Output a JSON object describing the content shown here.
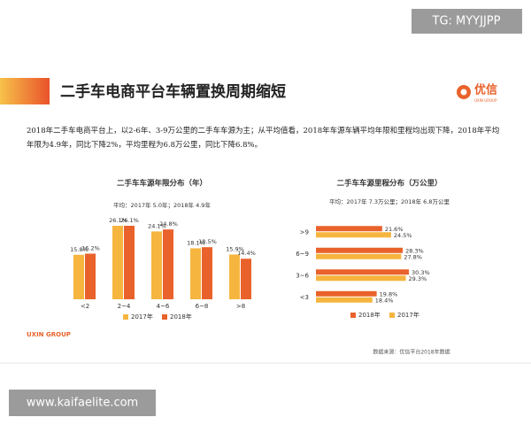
{
  "header": {
    "title": "二手车电商平台车辆置换周期缩短",
    "logo": "优信",
    "logo_sub": "UXIN GROUP"
  },
  "paragraph": "2018年二手车电商平台上，以2-6年、3-9万公里的二手车车源为主；从平均值看，2018年车源车辆平均年限和里程均出现下降，2018年平均年限为4.9年，同比下降2%，平均里程为6.8万公里，同比下降6.8%。",
  "footer": {
    "brand": "UXIN GROUP",
    "source": "数据来源：优信平台2018年数据"
  },
  "watermarks": {
    "top": "TG: MYYJJPP",
    "bottom": "www.kaifaelite.com"
  },
  "chart_data": [
    {
      "type": "bar",
      "title": "二手车车源年限分布（年）",
      "subtitle": "平均：2017年 5.0年；2018年 4.9年",
      "categories": [
        "<2",
        "2~4",
        "4~6",
        "6~8",
        ">8"
      ],
      "series": [
        {
          "name": "2017年",
          "color": "#f6b53f",
          "values": [
            15.8,
            26.1,
            24.1,
            18.1,
            15.9
          ],
          "value_labels": [
            "15.8%",
            "26.1%",
            "24.1%",
            "18.1%",
            "15.9%"
          ]
        },
        {
          "name": "2018年",
          "color": "#e9622b",
          "values": [
            16.2,
            26.1,
            24.8,
            18.5,
            14.4
          ],
          "value_labels": [
            "16.2%",
            "26.1%",
            "24.8%",
            "18.5%",
            "14.4%"
          ]
        }
      ]
    },
    {
      "type": "barh",
      "title": "二手车车源里程分布（万公里）",
      "subtitle": "平均：2017年 7.3万公里；2018年 6.8万公里",
      "categories": [
        ">9",
        "6~9",
        "3~6",
        "<3"
      ],
      "series": [
        {
          "name": "2018年",
          "color": "#e9622b",
          "values": [
            21.6,
            28.3,
            30.3,
            19.8
          ],
          "value_labels": [
            "21.6%",
            "28.3%",
            "30.3%",
            "19.8%"
          ]
        },
        {
          "name": "2017年",
          "color": "#f6b53f",
          "values": [
            24.5,
            27.8,
            29.3,
            18.4
          ],
          "value_labels": [
            "24.5%",
            "27.8%",
            "29.3%",
            "18.4%"
          ]
        }
      ]
    }
  ]
}
